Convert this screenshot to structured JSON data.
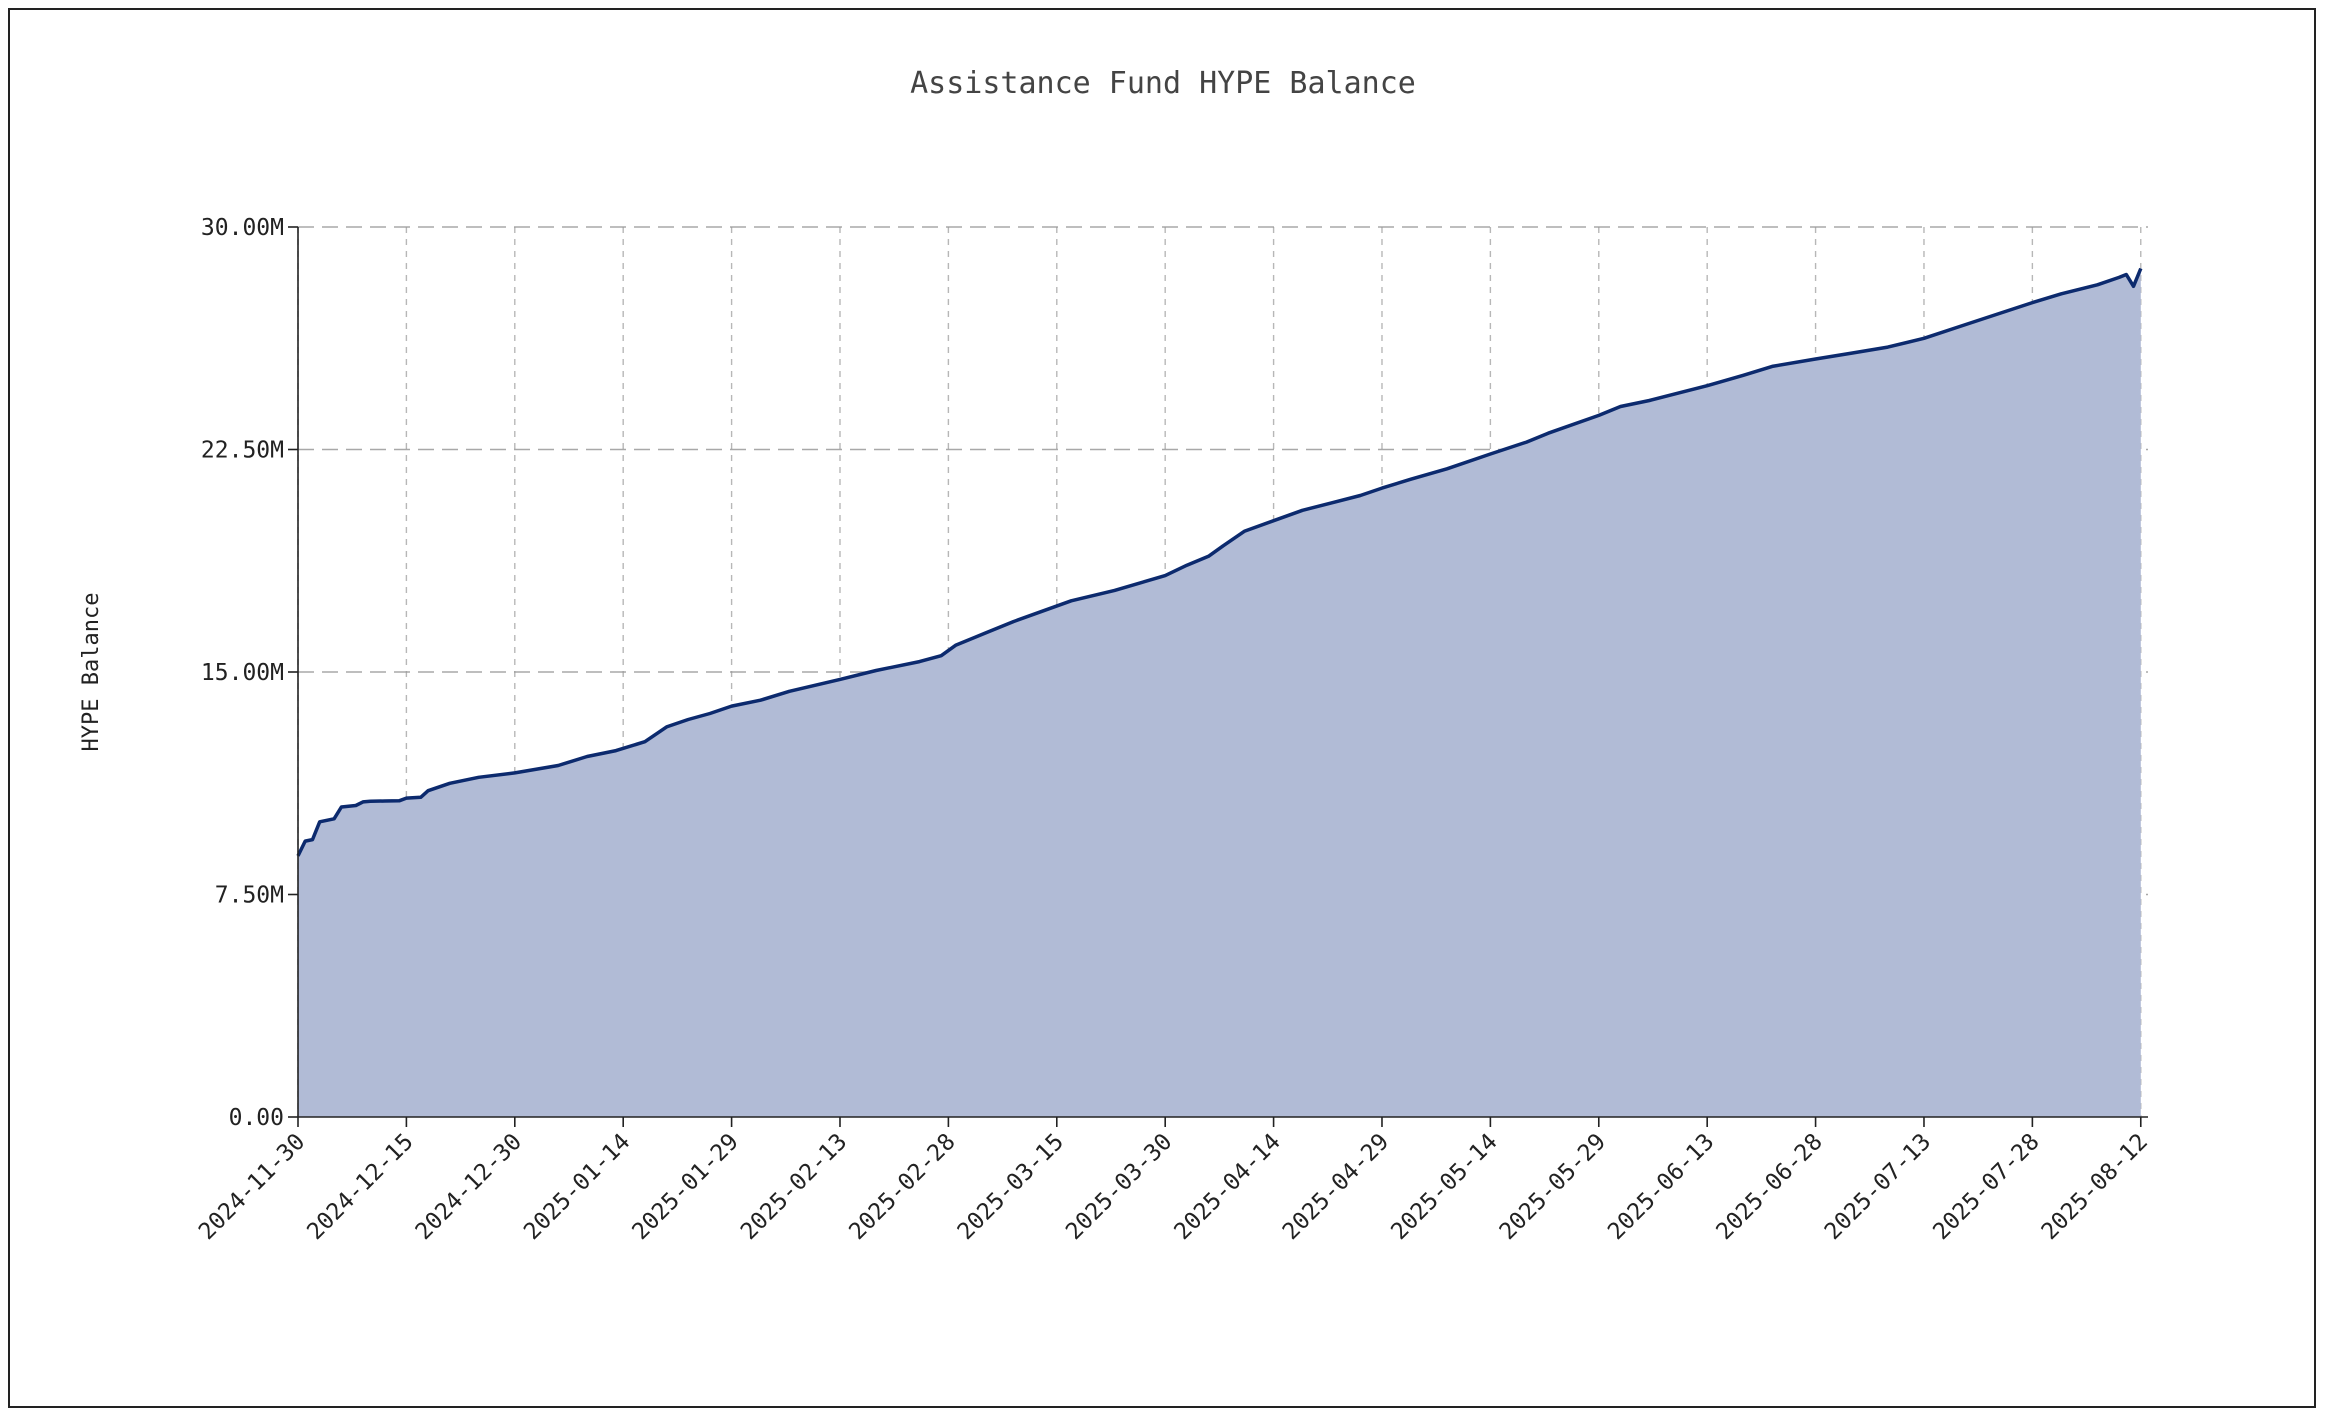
{
  "chart_data": {
    "type": "area",
    "title": "Assistance Fund HYPE Balance",
    "xlabel": "",
    "ylabel": "HYPE Balance",
    "x_tick_labels": [
      "2024-11-30",
      "2024-12-15",
      "2024-12-30",
      "2025-01-14",
      "2025-01-29",
      "2025-02-13",
      "2025-02-28",
      "2025-03-15",
      "2025-03-30",
      "2025-04-14",
      "2025-04-29",
      "2025-05-14",
      "2025-05-29",
      "2025-06-13",
      "2025-06-28",
      "2025-07-13",
      "2025-07-28",
      "2025-08-12"
    ],
    "y_tick_labels": [
      "0.00",
      "7.50M",
      "15.00M",
      "22.50M",
      "30.00M"
    ],
    "y_ticks": [
      0,
      7500000,
      15000000,
      22500000,
      30000000
    ],
    "ylim": [
      0,
      30000000
    ],
    "xlim": [
      "2024-11-30",
      "2025-08-13"
    ],
    "grid": true,
    "colors": {
      "line": "#0c2a6e",
      "fill": "#b1bbd6"
    },
    "series": [
      {
        "x": [
          "2024-11-30",
          "2024-12-01",
          "2024-12-02",
          "2024-12-03",
          "2024-12-05",
          "2024-12-06",
          "2024-12-08",
          "2024-12-09",
          "2024-12-10",
          "2024-12-12",
          "2024-12-14",
          "2024-12-15",
          "2024-12-17",
          "2024-12-18",
          "2024-12-21",
          "2024-12-25",
          "2024-12-30",
          "2025-01-05",
          "2025-01-09",
          "2025-01-13",
          "2025-01-17",
          "2025-01-20",
          "2025-01-23",
          "2025-01-26",
          "2025-01-29",
          "2025-02-02",
          "2025-02-06",
          "2025-02-13",
          "2025-02-18",
          "2025-02-24",
          "2025-02-27",
          "2025-03-01",
          "2025-03-05",
          "2025-03-09",
          "2025-03-13",
          "2025-03-17",
          "2025-03-23",
          "2025-03-30",
          "2025-04-02",
          "2025-04-05",
          "2025-04-07",
          "2025-04-10",
          "2025-04-14",
          "2025-04-18",
          "2025-04-22",
          "2025-04-26",
          "2025-04-29",
          "2025-05-03",
          "2025-05-08",
          "2025-05-14",
          "2025-05-19",
          "2025-05-22",
          "2025-05-29",
          "2025-06-01",
          "2025-06-05",
          "2025-06-09",
          "2025-06-13",
          "2025-06-18",
          "2025-06-22",
          "2025-06-28",
          "2025-07-03",
          "2025-07-08",
          "2025-07-13",
          "2025-07-18",
          "2025-07-23",
          "2025-07-28",
          "2025-08-01",
          "2025-08-06",
          "2025-08-09",
          "2025-08-10",
          "2025-08-11",
          "2025-08-12"
        ],
        "values": [
          8800000,
          9300000,
          9350000,
          9950000,
          10050000,
          10450000,
          10500000,
          10620000,
          10640000,
          10650000,
          10660000,
          10750000,
          10780000,
          11000000,
          11250000,
          11450000,
          11600000,
          11850000,
          12150000,
          12350000,
          12650000,
          13150000,
          13400000,
          13600000,
          13850000,
          14050000,
          14350000,
          14750000,
          15050000,
          15350000,
          15550000,
          15900000,
          16300000,
          16700000,
          17050000,
          17400000,
          17750000,
          18250000,
          18600000,
          18900000,
          19250000,
          19750000,
          20100000,
          20450000,
          20700000,
          20950000,
          21200000,
          21500000,
          21850000,
          22350000,
          22750000,
          23050000,
          23650000,
          23950000,
          24150000,
          24400000,
          24650000,
          25000000,
          25300000,
          25550000,
          25750000,
          25950000,
          26250000,
          26650000,
          27050000,
          27450000,
          27750000,
          28050000,
          28300000,
          28400000,
          28000000,
          28600000
        ]
      }
    ]
  }
}
